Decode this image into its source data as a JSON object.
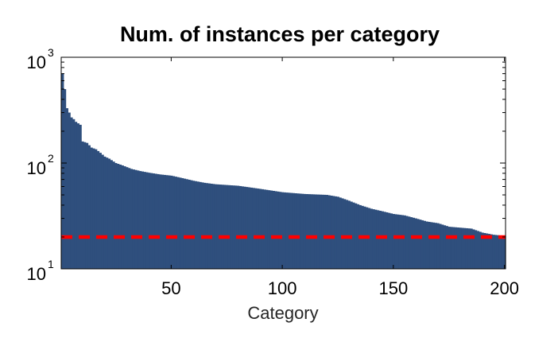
{
  "chart_data": {
    "type": "bar",
    "title": "Num. of instances per category",
    "xlabel": "Category",
    "ylabel": "",
    "x_scale": "linear",
    "y_scale": "log",
    "xlim": [
      1,
      200
    ],
    "ylim": [
      10,
      1000
    ],
    "x_ticks": [
      50,
      100,
      150,
      200
    ],
    "x_tick_labels": [
      "50",
      "100",
      "150",
      "200"
    ],
    "y_ticks": [
      10,
      100,
      1000
    ],
    "y_tick_labels": [
      {
        "base": "10",
        "exp": "1"
      },
      {
        "base": "10",
        "exp": "2"
      },
      {
        "base": "10",
        "exp": "3"
      }
    ],
    "grid": false,
    "colors": {
      "bars": "#2f4f7d",
      "threshold": "#ff0000",
      "axes": "#000000"
    },
    "threshold": {
      "value": 20,
      "style": "dashed"
    },
    "profile_points": [
      [
        1,
        700
      ],
      [
        2,
        500
      ],
      [
        3,
        330
      ],
      [
        4,
        300
      ],
      [
        5,
        270
      ],
      [
        6,
        260
      ],
      [
        7,
        245
      ],
      [
        9,
        230
      ],
      [
        10,
        160
      ],
      [
        12,
        155
      ],
      [
        14,
        140
      ],
      [
        16,
        135
      ],
      [
        18,
        125
      ],
      [
        20,
        115
      ],
      [
        22,
        110
      ],
      [
        25,
        100
      ],
      [
        28,
        95
      ],
      [
        32,
        88
      ],
      [
        36,
        84
      ],
      [
        40,
        81
      ],
      [
        45,
        78
      ],
      [
        50,
        76
      ],
      [
        55,
        72
      ],
      [
        60,
        68
      ],
      [
        65,
        65
      ],
      [
        70,
        63
      ],
      [
        80,
        61
      ],
      [
        90,
        57
      ],
      [
        100,
        53
      ],
      [
        110,
        51
      ],
      [
        120,
        50
      ],
      [
        125,
        48
      ],
      [
        130,
        44
      ],
      [
        135,
        40
      ],
      [
        140,
        37
      ],
      [
        145,
        35
      ],
      [
        150,
        33
      ],
      [
        155,
        32
      ],
      [
        160,
        30
      ],
      [
        165,
        28
      ],
      [
        170,
        27
      ],
      [
        175,
        25
      ],
      [
        185,
        24
      ],
      [
        190,
        22
      ],
      [
        195,
        21
      ],
      [
        200,
        20.5
      ]
    ]
  }
}
